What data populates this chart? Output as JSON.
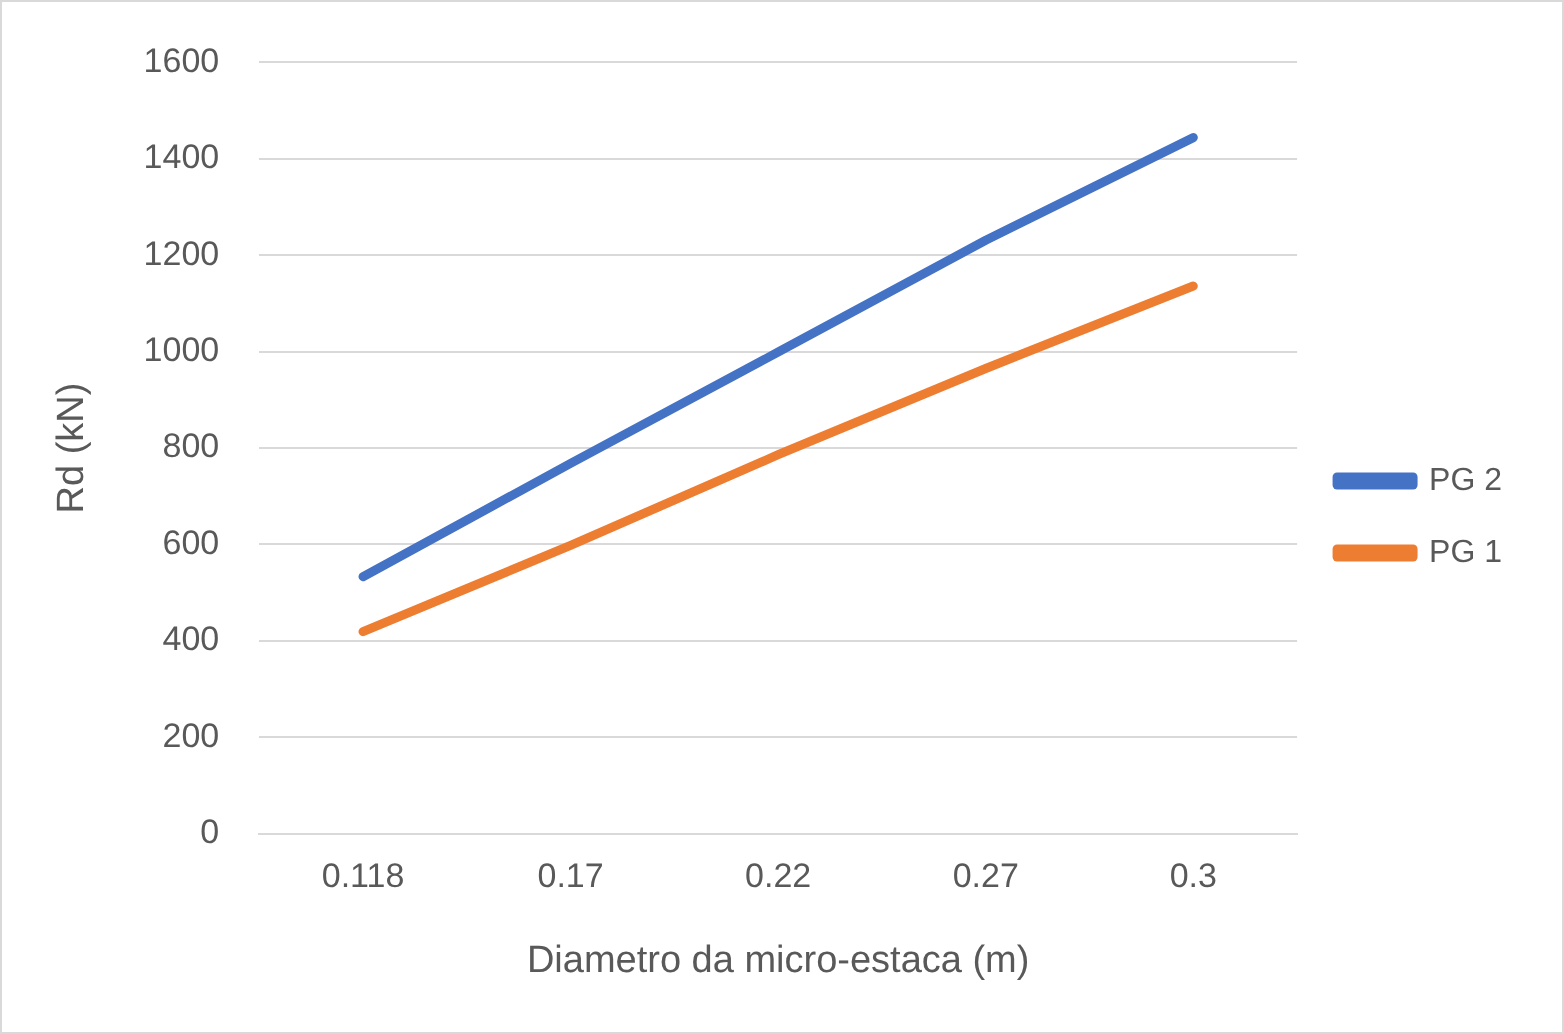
{
  "chart_data": {
    "type": "line",
    "xlabel": "Diametro da micro-estaca (m)",
    "ylabel": "Rd (kN)",
    "categories": [
      "0.118",
      "0.17",
      "0.22",
      "0.27",
      "0.3"
    ],
    "series": [
      {
        "name": "PG 2",
        "color": "#4472c4",
        "values": [
          533,
          768,
          999,
          1231,
          1444
        ]
      },
      {
        "name": "PG 1",
        "color": "#ed7d31",
        "values": [
          419,
          598,
          786,
          965,
          1136
        ]
      }
    ],
    "ylim": [
      0,
      1600
    ],
    "yticks": [
      0,
      200,
      400,
      600,
      800,
      1000,
      1200,
      1400,
      1600
    ],
    "grid": "y",
    "legend": "right",
    "marker": "none",
    "line_style": "solid"
  }
}
